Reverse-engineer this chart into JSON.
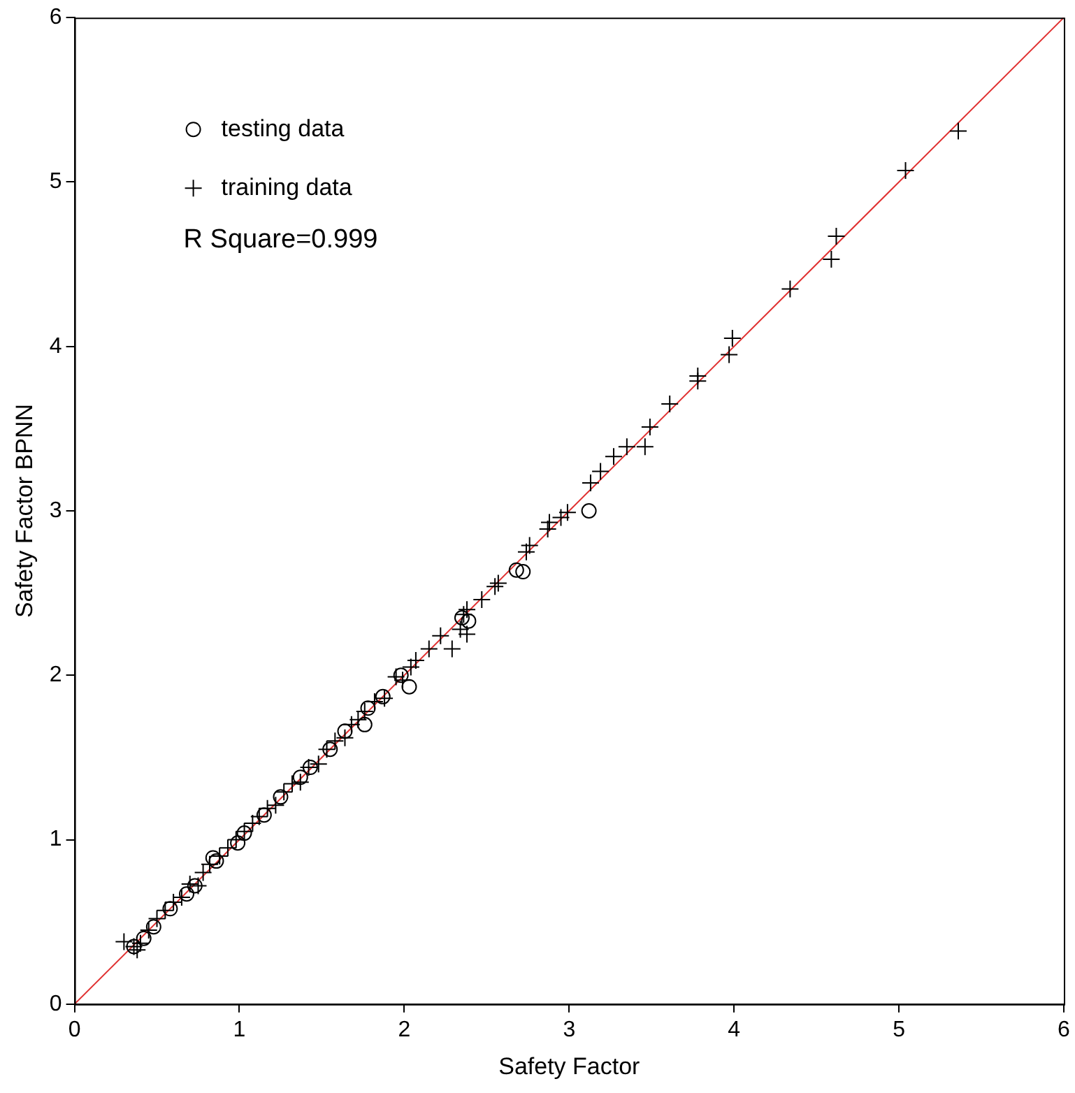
{
  "chart_data": {
    "type": "scatter",
    "xlabel": "Safety Factor",
    "ylabel": "Safety Factor BPNN",
    "xlim": [
      0,
      6
    ],
    "ylim": [
      0,
      6
    ],
    "xticks": [
      0,
      1,
      2,
      3,
      4,
      5,
      6
    ],
    "yticks": [
      0,
      1,
      2,
      3,
      4,
      5,
      6
    ],
    "grid": false,
    "legend": "top left",
    "annotations": [
      "R Square=0.999"
    ],
    "series": [
      {
        "name": "testing data",
        "color": "#000000",
        "marker": "circle",
        "x": [
          3.12,
          2.72,
          2.68,
          2.39,
          2.35,
          2.03,
          1.98,
          1.87,
          1.76,
          1.78,
          1.64,
          1.55,
          1.43,
          1.37,
          1.25,
          1.15,
          1.03,
          0.99,
          0.86,
          0.84,
          0.73,
          0.68,
          0.58,
          0.48,
          0.42,
          0.36
        ],
        "values": [
          3.0,
          2.63,
          2.64,
          2.33,
          2.35,
          1.93,
          2.0,
          1.87,
          1.7,
          1.8,
          1.66,
          1.55,
          1.44,
          1.38,
          1.26,
          1.15,
          1.04,
          0.98,
          0.87,
          0.89,
          0.72,
          0.67,
          0.58,
          0.47,
          0.4,
          0.35
        ]
      },
      {
        "name": "training data",
        "color": "#000000",
        "marker": "cross",
        "x": [
          5.36,
          5.04,
          4.62,
          4.59,
          4.34,
          3.99,
          3.97,
          3.78,
          3.78,
          3.61,
          3.49,
          3.46,
          3.35,
          3.27,
          3.19,
          3.13,
          2.99,
          2.95,
          2.88,
          2.87,
          2.76,
          2.74,
          2.57,
          2.55,
          2.47,
          2.38,
          2.36,
          2.34,
          2.38,
          2.29,
          2.22,
          2.15,
          2.07,
          2.04,
          1.99,
          1.95,
          1.88,
          1.82,
          1.76,
          1.72,
          1.68,
          1.64,
          1.58,
          1.53,
          1.48,
          1.42,
          1.37,
          1.32,
          1.27,
          1.22,
          1.17,
          1.12,
          1.08,
          1.03,
          0.98,
          0.93,
          0.88,
          0.82,
          0.78,
          0.75,
          0.7,
          0.65,
          0.6,
          0.55,
          0.5,
          0.45,
          0.4,
          0.36,
          0.3,
          0.38
        ],
        "values": [
          5.31,
          5.07,
          4.67,
          4.53,
          4.35,
          4.05,
          3.95,
          3.82,
          3.79,
          3.65,
          3.51,
          3.39,
          3.39,
          3.33,
          3.24,
          3.17,
          2.99,
          2.96,
          2.93,
          2.89,
          2.79,
          2.75,
          2.56,
          2.54,
          2.46,
          2.4,
          2.37,
          2.28,
          2.25,
          2.16,
          2.24,
          2.16,
          2.09,
          2.05,
          1.97,
          1.99,
          1.86,
          1.84,
          1.78,
          1.73,
          1.7,
          1.62,
          1.6,
          1.55,
          1.46,
          1.44,
          1.35,
          1.34,
          1.29,
          1.21,
          1.19,
          1.14,
          1.1,
          1.05,
          1.0,
          0.95,
          0.9,
          0.85,
          0.8,
          0.72,
          0.73,
          0.65,
          0.62,
          0.57,
          0.52,
          0.45,
          0.37,
          0.35,
          0.38,
          0.33
        ]
      },
      {
        "type": "line",
        "color": "#e03030",
        "marker": "none",
        "x": [
          0,
          6
        ],
        "values": [
          0,
          6
        ]
      }
    ]
  }
}
